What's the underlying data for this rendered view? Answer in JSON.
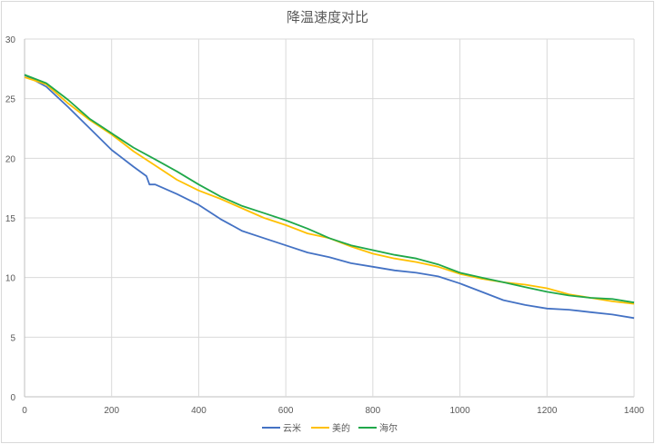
{
  "chart_data": {
    "type": "line",
    "title": "降温速度对比",
    "xlabel": "",
    "ylabel": "",
    "xlim": [
      0,
      1400
    ],
    "ylim": [
      0,
      30
    ],
    "x_ticks": [
      0,
      200,
      400,
      600,
      800,
      1000,
      1200,
      1400
    ],
    "y_ticks": [
      0,
      5,
      10,
      15,
      20,
      25,
      30
    ],
    "grid": true,
    "legend_position": "bottom",
    "x": [
      0,
      50,
      100,
      150,
      200,
      250,
      300,
      350,
      400,
      450,
      500,
      550,
      600,
      650,
      700,
      750,
      800,
      850,
      900,
      950,
      1000,
      1050,
      1100,
      1150,
      1200,
      1250,
      1300,
      1350,
      1400
    ],
    "series": [
      {
        "name": "云米",
        "color": "#4472C4",
        "values": [
          27.0,
          26.0,
          24.3,
          22.5,
          20.7,
          19.3,
          17.8,
          17.0,
          16.1,
          14.9,
          13.9,
          13.3,
          12.7,
          12.1,
          11.7,
          11.2,
          10.9,
          10.6,
          10.4,
          10.1,
          9.5,
          8.8,
          8.1,
          7.7,
          7.4,
          7.3,
          7.1,
          6.9,
          6.6
        ],
        "annotation": "small drop near x≈285 from ~18.5 to ~17.8"
      },
      {
        "name": "美的",
        "color": "#FFC000",
        "values": [
          26.8,
          26.2,
          24.6,
          23.2,
          22.0,
          20.6,
          19.4,
          18.2,
          17.3,
          16.6,
          15.8,
          15.0,
          14.4,
          13.7,
          13.3,
          12.6,
          12.0,
          11.6,
          11.3,
          10.9,
          10.3,
          9.9,
          9.6,
          9.4,
          9.1,
          8.6,
          8.3,
          8.0,
          7.8
        ]
      },
      {
        "name": "海尔",
        "color": "#20A84A",
        "values": [
          27.0,
          26.3,
          24.9,
          23.3,
          22.1,
          20.9,
          19.9,
          18.9,
          17.8,
          16.8,
          16.0,
          15.4,
          14.8,
          14.1,
          13.3,
          12.7,
          12.3,
          11.9,
          11.6,
          11.1,
          10.4,
          10.0,
          9.6,
          9.2,
          8.8,
          8.5,
          8.3,
          8.2,
          7.9
        ]
      }
    ]
  }
}
